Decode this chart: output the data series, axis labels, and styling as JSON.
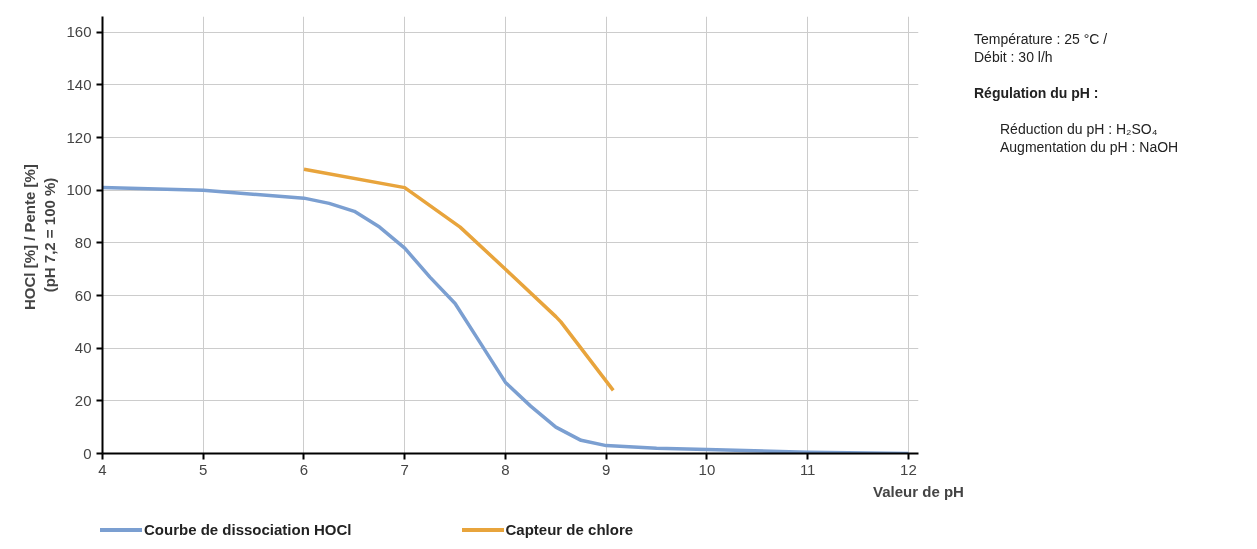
{
  "chart_data": {
    "type": "line",
    "xlabel": "Valeur de pH",
    "ylabel": "HOCl [%]  / Pente [%]\n(pH 7,2 = 100 %)",
    "xlim": [
      4,
      12.1
    ],
    "ylim": [
      0,
      166
    ],
    "xticks": [
      4,
      5,
      6,
      7,
      8,
      9,
      10,
      11,
      12
    ],
    "yticks": [
      0,
      20,
      40,
      60,
      80,
      100,
      120,
      140,
      160
    ],
    "grid": true,
    "legend": "bottom",
    "line_style": "solid",
    "marker": "none",
    "series": [
      {
        "name": "Courbe de dissociation HOCl",
        "color": "#7b9fd1",
        "x": [
          4,
          5,
          6,
          6.25,
          6.5,
          6.75,
          7,
          7.25,
          7.5,
          7.75,
          8,
          8.25,
          8.5,
          8.75,
          9,
          9.5,
          10,
          11,
          12
        ],
        "values": [
          101,
          100,
          97,
          95,
          92,
          86,
          78,
          67,
          57,
          42,
          27,
          18,
          10,
          5,
          3,
          2,
          1.5,
          0.5,
          0
        ]
      },
      {
        "name": "Capteur de chlore",
        "color": "#e8a43c",
        "x": [
          6,
          7,
          7.55,
          8,
          8.5,
          8.55,
          9.07
        ],
        "values": [
          108,
          101,
          86,
          70,
          52,
          50,
          24
        ]
      }
    ],
    "annotations": [
      "Température : 25 °C /\nDébit : 30 l/h",
      "Régulation du pH :",
      "Réduction du pH : H₂SO₄",
      "Augmentation du pH : NaOH"
    ]
  }
}
